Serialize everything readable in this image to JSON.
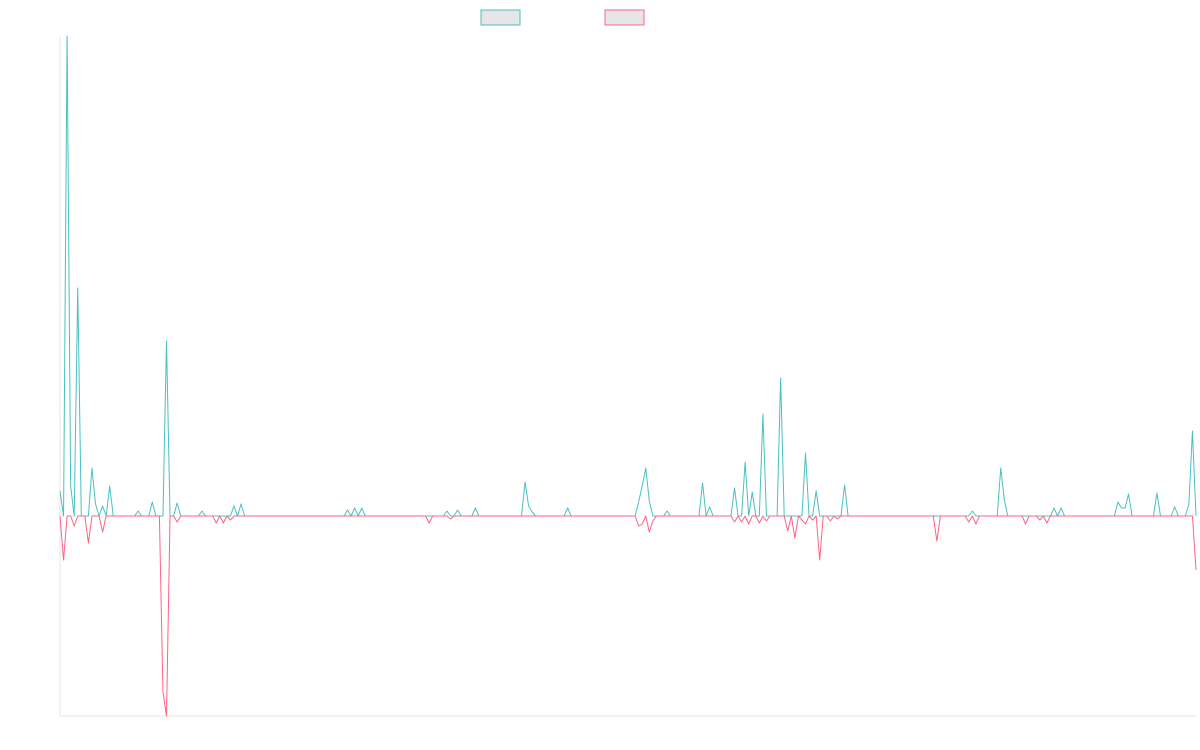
{
  "chart_data": {
    "type": "line",
    "title": "",
    "xlabel": "",
    "ylabel": "",
    "grid": false,
    "legend_position": "top-center",
    "ylim": [
      -200,
      480
    ],
    "series": [
      {
        "name": "",
        "color": "#4bc0c0",
        "fill": "#e6e6e6",
        "values": [
          25,
          0,
          480,
          30,
          0,
          228,
          0,
          0,
          0,
          48,
          12,
          0,
          10,
          0,
          30,
          0,
          0,
          0,
          0,
          0,
          0,
          0,
          5,
          0,
          0,
          0,
          14,
          0,
          0,
          0,
          175,
          0,
          0,
          13,
          0,
          0,
          0,
          0,
          0,
          0,
          5,
          0,
          0,
          0,
          0,
          0,
          0,
          0,
          0,
          10,
          0,
          12,
          0,
          0,
          0,
          0,
          0,
          0,
          0,
          0,
          0,
          0,
          0,
          0,
          0,
          0,
          0,
          0,
          0,
          0,
          0,
          0,
          0,
          0,
          0,
          0,
          0,
          0,
          0,
          0,
          0,
          6,
          0,
          8,
          0,
          8,
          0,
          0,
          0,
          0,
          0,
          0,
          0,
          0,
          0,
          0,
          0,
          0,
          0,
          0,
          0,
          0,
          0,
          0,
          0,
          0,
          0,
          0,
          0,
          5,
          0,
          0,
          6,
          0,
          0,
          0,
          0,
          8,
          0,
          0,
          0,
          0,
          0,
          0,
          0,
          0,
          0,
          0,
          0,
          0,
          0,
          34,
          10,
          4,
          0,
          0,
          0,
          0,
          0,
          0,
          0,
          0,
          0,
          8,
          0,
          0,
          0,
          0,
          0,
          0,
          0,
          0,
          0,
          0,
          0,
          0,
          0,
          0,
          0,
          0,
          0,
          0,
          0,
          14,
          30,
          48,
          15,
          0,
          0,
          0,
          0,
          5,
          0,
          0,
          0,
          0,
          0,
          0,
          0,
          0,
          0,
          33,
          0,
          9,
          0,
          0,
          0,
          0,
          0,
          0,
          28,
          0,
          0,
          54,
          0,
          24,
          0,
          0,
          102,
          0,
          0,
          0,
          0,
          138,
          0,
          0,
          0,
          0,
          0,
          0,
          63,
          0,
          0,
          25,
          0,
          0,
          0,
          0,
          0,
          0,
          0,
          31,
          0,
          0,
          0,
          0,
          0,
          0,
          0,
          0,
          0,
          0,
          0,
          0,
          0,
          0,
          0,
          0,
          0,
          0,
          0,
          0,
          0,
          0,
          0,
          0,
          0,
          0,
          0,
          0,
          0,
          0,
          0,
          0,
          0,
          0,
          0,
          5,
          0,
          0,
          0,
          0,
          0,
          0,
          0,
          48,
          16,
          0,
          0,
          0,
          0,
          0,
          0,
          0,
          0,
          0,
          0,
          0,
          0,
          0,
          8,
          0,
          8,
          0,
          0,
          0,
          0,
          0,
          0,
          0,
          0,
          0,
          0,
          0,
          0,
          0,
          0,
          0,
          14,
          8,
          8,
          22,
          0,
          0,
          0,
          0,
          0,
          0,
          0,
          23,
          0,
          0,
          0,
          0,
          9,
          0,
          0,
          0,
          12,
          85,
          0
        ]
      },
      {
        "name": "",
        "color": "#ff6384",
        "fill": "#e6e6e6",
        "values": [
          0,
          -44,
          0,
          0,
          -10,
          0,
          0,
          0,
          -27,
          0,
          0,
          0,
          -16,
          0,
          0,
          0,
          0,
          0,
          0,
          0,
          0,
          0,
          0,
          0,
          0,
          0,
          0,
          0,
          0,
          -176,
          -200,
          0,
          0,
          -6,
          0,
          0,
          0,
          0,
          0,
          0,
          0,
          0,
          0,
          0,
          -7,
          0,
          -7,
          0,
          -4,
          0,
          0,
          0,
          0,
          0,
          0,
          0,
          0,
          0,
          0,
          0,
          0,
          0,
          0,
          0,
          0,
          0,
          0,
          0,
          0,
          0,
          0,
          0,
          0,
          0,
          0,
          0,
          0,
          0,
          0,
          0,
          0,
          0,
          0,
          0,
          0,
          0,
          0,
          0,
          0,
          0,
          0,
          0,
          0,
          0,
          0,
          0,
          0,
          0,
          0,
          0,
          0,
          0,
          0,
          0,
          -7,
          0,
          0,
          0,
          0,
          0,
          -3,
          0,
          0,
          0,
          0,
          0,
          0,
          0,
          0,
          0,
          0,
          0,
          0,
          0,
          0,
          0,
          0,
          0,
          0,
          0,
          0,
          0,
          0,
          0,
          0,
          0,
          0,
          0,
          0,
          0,
          0,
          0,
          0,
          0,
          0,
          0,
          0,
          0,
          0,
          0,
          0,
          0,
          0,
          0,
          0,
          0,
          0,
          0,
          0,
          0,
          0,
          0,
          0,
          -10,
          -8,
          0,
          -16,
          -5,
          0,
          0,
          0,
          0,
          0,
          0,
          0,
          0,
          0,
          0,
          0,
          0,
          0,
          0,
          0,
          0,
          0,
          0,
          0,
          0,
          0,
          0,
          -6,
          0,
          -6,
          0,
          -8,
          0,
          0,
          -7,
          0,
          -5,
          0,
          0,
          0,
          0,
          0,
          -15,
          0,
          -22,
          0,
          -4,
          -8,
          0,
          -4,
          0,
          -44,
          0,
          0,
          -5,
          0,
          -3,
          0,
          0,
          0,
          0,
          0,
          0,
          0,
          0,
          0,
          0,
          0,
          0,
          0,
          0,
          0,
          0,
          0,
          0,
          0,
          0,
          0,
          0,
          0,
          0,
          0,
          0,
          0,
          -25,
          0,
          0,
          0,
          0,
          0,
          0,
          0,
          0,
          -6,
          0,
          -8,
          0,
          0,
          0,
          0,
          0,
          0,
          0,
          0,
          0,
          0,
          0,
          0,
          0,
          -8,
          0,
          0,
          0,
          -4,
          0,
          -7,
          0,
          0,
          0,
          0,
          0,
          0,
          0,
          0,
          0,
          0,
          0,
          0,
          0,
          0,
          0,
          0,
          0,
          0,
          0,
          0,
          0,
          0,
          0,
          0,
          0,
          0,
          0,
          0,
          0,
          0,
          0,
          0,
          0,
          0,
          0,
          0,
          0,
          0,
          0,
          0,
          0,
          -54
        ]
      }
    ]
  }
}
